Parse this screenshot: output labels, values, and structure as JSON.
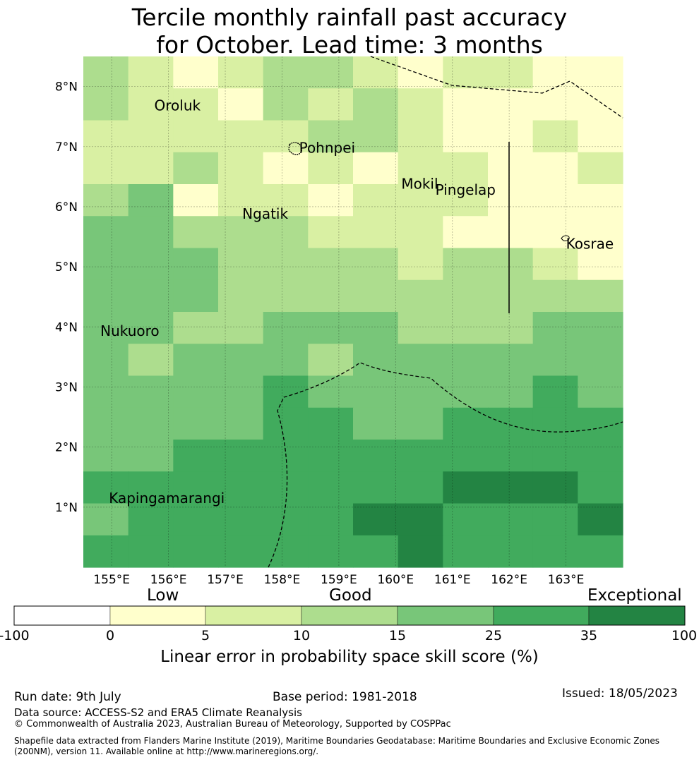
{
  "title": {
    "line1": "Tercile monthly rainfall past accuracy",
    "line2": "for October. Lead time: 3 months"
  },
  "map": {
    "lon_ticks": [
      "155°E",
      "156°E",
      "157°E",
      "158°E",
      "159°E",
      "160°E",
      "161°E",
      "162°E",
      "163°E"
    ],
    "lat_ticks": [
      "8°N",
      "7°N",
      "6°N",
      "5°N",
      "4°N",
      "3°N",
      "2°N",
      "1°N"
    ],
    "places": [
      {
        "name": "Oroluk",
        "lon": 155.75,
        "lat": 7.6
      },
      {
        "name": "Pohnpei",
        "lon": 158.3,
        "lat": 6.9
      },
      {
        "name": "Mokil",
        "lon": 160.1,
        "lat": 6.3
      },
      {
        "name": "Pingelap",
        "lon": 160.7,
        "lat": 6.2
      },
      {
        "name": "Ngatik",
        "lon": 157.3,
        "lat": 5.8
      },
      {
        "name": "Kosrae",
        "lon": 163.0,
        "lat": 5.3
      },
      {
        "name": "Nukuoro",
        "lon": 154.8,
        "lat": 3.85
      },
      {
        "name": "Kapingamarangi",
        "lon": 154.95,
        "lat": 1.07
      }
    ],
    "skill_grid": [
      [
        3,
        2,
        1,
        2,
        3,
        3,
        2,
        1,
        2,
        2,
        1,
        1
      ],
      [
        3,
        2,
        2,
        1,
        3,
        2,
        3,
        2,
        1,
        1,
        1,
        1
      ],
      [
        2,
        2,
        2,
        2,
        2,
        3,
        3,
        2,
        1,
        1,
        2,
        1
      ],
      [
        2,
        2,
        3,
        2,
        1,
        2,
        1,
        2,
        2,
        1,
        1,
        2
      ],
      [
        3,
        4,
        1,
        2,
        2,
        1,
        2,
        2,
        2,
        1,
        1,
        1
      ],
      [
        4,
        4,
        3,
        3,
        3,
        2,
        2,
        2,
        1,
        1,
        1,
        1
      ],
      [
        4,
        4,
        4,
        3,
        3,
        3,
        3,
        2,
        3,
        3,
        2,
        1
      ],
      [
        4,
        4,
        4,
        3,
        3,
        3,
        3,
        3,
        3,
        3,
        3,
        3
      ],
      [
        4,
        4,
        3,
        3,
        4,
        4,
        4,
        3,
        3,
        3,
        4,
        4
      ],
      [
        4,
        3,
        4,
        4,
        4,
        3,
        4,
        4,
        4,
        4,
        4,
        4
      ],
      [
        4,
        4,
        4,
        4,
        5,
        4,
        4,
        4,
        4,
        4,
        5,
        4
      ],
      [
        4,
        4,
        4,
        4,
        5,
        5,
        4,
        4,
        5,
        5,
        5,
        5
      ],
      [
        4,
        4,
        5,
        5,
        5,
        5,
        5,
        5,
        5,
        5,
        5,
        5
      ],
      [
        5,
        5,
        5,
        5,
        5,
        5,
        5,
        5,
        6,
        6,
        6,
        5
      ],
      [
        4,
        5,
        5,
        5,
        5,
        5,
        6,
        6,
        5,
        5,
        5,
        6
      ],
      [
        5,
        5,
        5,
        5,
        5,
        5,
        5,
        6,
        5,
        5,
        5,
        5
      ]
    ],
    "grid_extent": {
      "lon_min": 154.5,
      "lon_max": 164.0,
      "lat_min": 0.0,
      "lat_max": 8.5
    }
  },
  "colorbar": {
    "categories": [
      "Low",
      "Good",
      "Exceptional"
    ],
    "ticks": [
      "-100",
      "0",
      "5",
      "10",
      "15",
      "25",
      "35",
      "100"
    ],
    "colors": [
      "#ffffff",
      "#ffffcc",
      "#d9f0a3",
      "#addd8e",
      "#78c679",
      "#41ab5d",
      "#238443"
    ],
    "label": "Linear error in probability space skill score (%)"
  },
  "footer": {
    "run_date": "Run date: 9th July",
    "base_period": "Base period: 1981-2018",
    "issued": "Issued: 18/05/2023",
    "data_source": "Data source: ACCESS-S2 and ERA5 Climate Reanalysis",
    "copyright": "© Commonwealth of Australia 2023, Australian Bureau of Meteorology, Supported by COSPPac",
    "shapefile_line1": "Shapefile data extracted from Flanders Marine Institute (2019), Maritime Boundaries Geodatabase: Maritime Boundaries and Exclusive Economic Zones",
    "shapefile_line2": "(200NM), version 11. Available online at http://www.marineregions.org/."
  }
}
